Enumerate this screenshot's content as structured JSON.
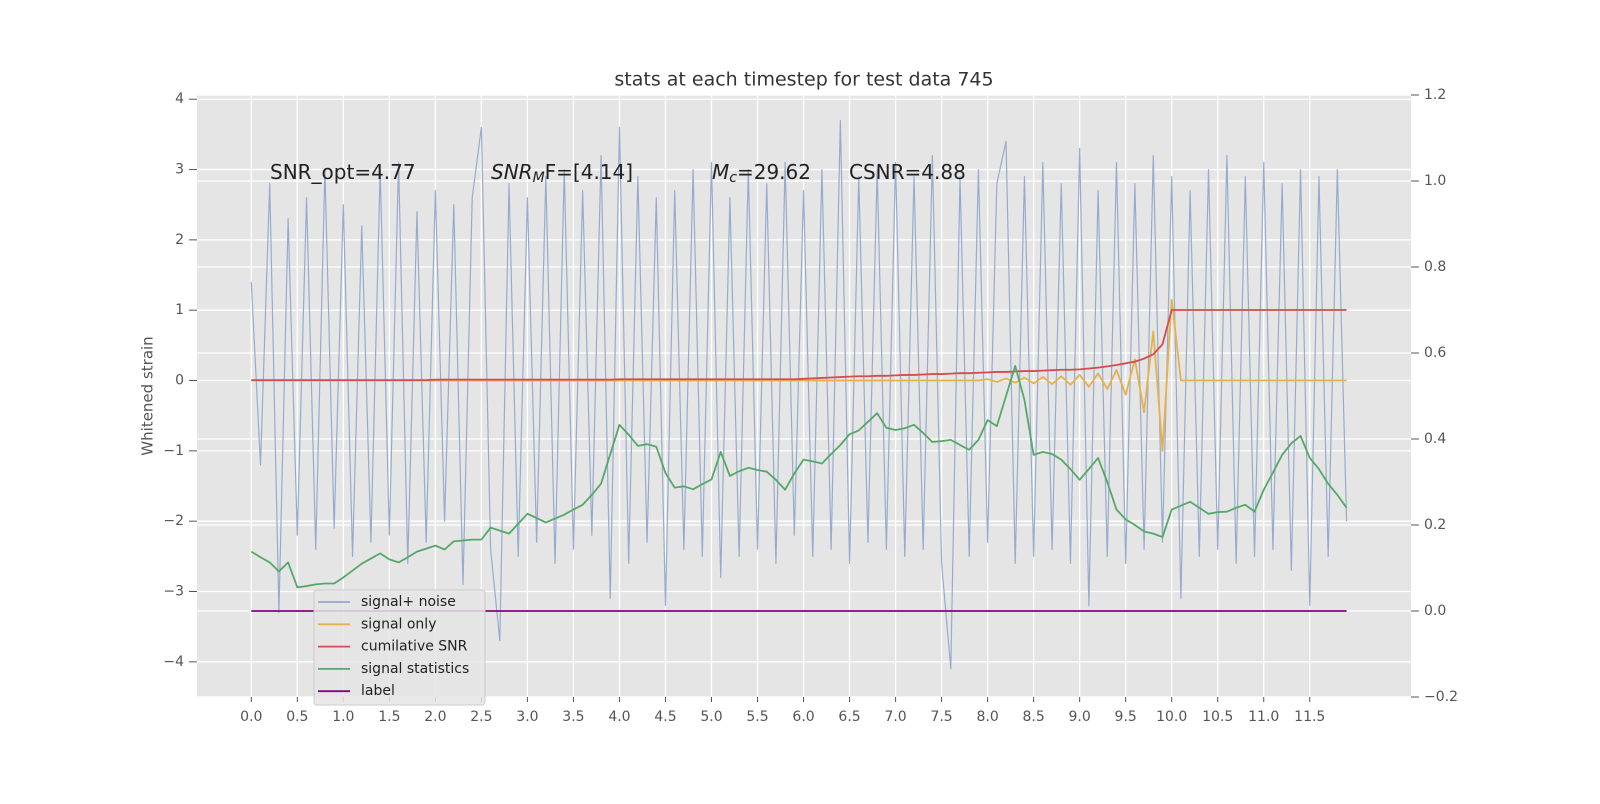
{
  "chart_data": {
    "type": "line",
    "title": "stats at each timestep for test data 745",
    "y_label": "Whitened strain",
    "annotations": [
      {
        "main": "SNR_opt=4.77"
      },
      {
        "main": "SNR",
        "sub": "M",
        "tail": "F=[4.14]"
      },
      {
        "main": "M",
        "sub": "c",
        "tail": "=29.62"
      },
      {
        "main": "CSNR=4.88"
      }
    ],
    "grid": true,
    "legend": "lower left",
    "xlim": [
      -0.59,
      12.6
    ],
    "ylim": [
      -4.5,
      4.06
    ],
    "y2lim": [
      -0.2,
      1.2
    ],
    "xticks": [
      {
        "value": 0,
        "label": "0.0"
      },
      0.5,
      {
        "value": 1,
        "label": "1.0"
      },
      1.5,
      {
        "value": 2,
        "label": "2.0"
      },
      2.5,
      {
        "value": 3,
        "label": "3.0"
      },
      3.5,
      {
        "value": 4,
        "label": "4.0"
      },
      4.5,
      {
        "value": 5,
        "label": "5.0"
      },
      5.5,
      {
        "value": 6,
        "label": "6.0"
      },
      6.5,
      {
        "value": 7,
        "label": "7.0"
      },
      7.5,
      {
        "value": 8,
        "label": "8.0"
      },
      8.5,
      {
        "value": 9,
        "label": "9.0"
      },
      9.5,
      {
        "value": 10,
        "label": "10.0"
      },
      10.5,
      {
        "value": 11,
        "label": "11.0"
      },
      11.5
    ],
    "yticks": [
      {
        "value": -4,
        "label": "−4"
      },
      {
        "value": -3,
        "label": "−3"
      },
      {
        "value": -2,
        "label": "−2"
      },
      {
        "value": -1,
        "label": "−1"
      },
      0,
      1,
      2,
      3,
      4
    ],
    "y2ticks": [
      {
        "value": -0.2,
        "label": "−0.2"
      },
      {
        "value": 0,
        "label": "0.0"
      },
      0.2,
      0.4,
      0.6,
      0.8,
      {
        "value": 1,
        "label": "1.0"
      },
      1.2
    ],
    "x": [
      0,
      0.1,
      0.2,
      0.3,
      0.4,
      0.5,
      0.6,
      0.7,
      0.8,
      0.9,
      1,
      1.1,
      1.2,
      1.3,
      1.4,
      1.5,
      1.6,
      1.7,
      1.8,
      1.9,
      2,
      2.1,
      2.2,
      2.3,
      2.4,
      2.5,
      2.6,
      2.7,
      2.8,
      2.9,
      3,
      3.1,
      3.2,
      3.3,
      3.4,
      3.5,
      3.6,
      3.7,
      3.8,
      3.9,
      4,
      4.1,
      4.2,
      4.3,
      4.4,
      4.5,
      4.6,
      4.7,
      4.8,
      4.9,
      5,
      5.1,
      5.2,
      5.3,
      5.4,
      5.5,
      5.6,
      5.7,
      5.8,
      5.9,
      6,
      6.1,
      6.2,
      6.3,
      6.4,
      6.5,
      6.6,
      6.7,
      6.8,
      6.9,
      7,
      7.1,
      7.2,
      7.3,
      7.4,
      7.5,
      7.6,
      7.7,
      7.8,
      7.9,
      8,
      8.1,
      8.2,
      8.3,
      8.4,
      8.5,
      8.6,
      8.7,
      8.8,
      8.9,
      9,
      9.1,
      9.2,
      9.3,
      9.4,
      9.5,
      9.6,
      9.7,
      9.8,
      9.9,
      10,
      10.1,
      10.2,
      10.3,
      10.4,
      10.5,
      10.6,
      10.7,
      10.8,
      10.9,
      11,
      11.1,
      11.2,
      11.3,
      11.4,
      11.5,
      11.6,
      11.7,
      11.8,
      11.9
    ],
    "series": [
      {
        "name": "signal+ noise",
        "color": "#92a8cd",
        "values": [
          1.4,
          -1.2,
          2.8,
          -3.3,
          2.3,
          -2.2,
          2.6,
          -2.4,
          3.0,
          -2.1,
          2.5,
          -2.5,
          2.2,
          -2.3,
          3.0,
          -2.2,
          3.1,
          -2.6,
          2.4,
          -2.3,
          2.7,
          -2.0,
          2.5,
          -2.9,
          2.6,
          3.6,
          -2.4,
          -3.7,
          2.8,
          -2.5,
          2.6,
          -2.3,
          2.9,
          -2.6,
          3.0,
          -2.4,
          2.7,
          -2.2,
          3.2,
          -3.1,
          3.6,
          -2.6,
          2.9,
          -2.3,
          2.6,
          -3.2,
          2.7,
          -2.4,
          3.0,
          -2.5,
          3.1,
          -2.8,
          2.6,
          -2.5,
          3.0,
          -2.4,
          2.8,
          -2.6,
          3.1,
          -2.2,
          2.7,
          -2.5,
          3.0,
          -2.4,
          3.7,
          -2.6,
          2.9,
          -2.3,
          3.0,
          -2.4,
          3.1,
          -2.5,
          2.9,
          -2.4,
          3.2,
          -2.6,
          -4.1,
          2.9,
          -2.5,
          3.0,
          -2.3,
          2.8,
          3.4,
          -2.6,
          2.9,
          -2.5,
          3.1,
          -2.4,
          2.8,
          -2.6,
          3.3,
          -3.2,
          2.7,
          -2.5,
          3.1,
          -2.6,
          2.8,
          -2.4,
          3.2,
          -2.3,
          2.9,
          -3.1,
          2.7,
          -2.5,
          3.0,
          -2.4,
          3.2,
          -2.6,
          2.9,
          -2.5,
          3.1,
          -2.4,
          2.8,
          -2.7,
          3.0,
          -3.2,
          2.9,
          -2.5,
          3.0,
          -2.0
        ]
      },
      {
        "name": "signal only",
        "color": "#e8b04b",
        "values": [
          0,
          0,
          0,
          0,
          0,
          0,
          0,
          0,
          0,
          0,
          0,
          0,
          0,
          0,
          0,
          0,
          0,
          0,
          0,
          0,
          0,
          0,
          0,
          0,
          0,
          0,
          0,
          0,
          0,
          0,
          0,
          0,
          0,
          0,
          0,
          0,
          0,
          0,
          0,
          0,
          0,
          0,
          0,
          0,
          0,
          0,
          0,
          0,
          0,
          0,
          0,
          0,
          0,
          0,
          0,
          0,
          0,
          0,
          0,
          0,
          0,
          0,
          0,
          0,
          0,
          0,
          0,
          0,
          0,
          0,
          0,
          0,
          0,
          0,
          0,
          0,
          0,
          0,
          0,
          0,
          0.02,
          -0.02,
          0.03,
          -0.03,
          0.04,
          -0.04,
          0.05,
          -0.05,
          0.06,
          -0.06,
          0.08,
          -0.09,
          0.1,
          -0.12,
          0.15,
          -0.2,
          0.3,
          -0.45,
          0.7,
          -1.0,
          1.15,
          0,
          0,
          0,
          0,
          0,
          0,
          0,
          0,
          0,
          0,
          0,
          0,
          0,
          0,
          0,
          0,
          0,
          0,
          0
        ]
      },
      {
        "name": "cumilative SNR",
        "color": "#d64b4b",
        "axis": "y2",
        "values": [
          0.537,
          0.537,
          0.537,
          0.537,
          0.537,
          0.537,
          0.537,
          0.537,
          0.537,
          0.537,
          0.537,
          0.537,
          0.537,
          0.537,
          0.537,
          0.537,
          0.537,
          0.537,
          0.537,
          0.537,
          0.538,
          0.538,
          0.538,
          0.538,
          0.538,
          0.538,
          0.538,
          0.538,
          0.538,
          0.538,
          0.538,
          0.538,
          0.538,
          0.538,
          0.538,
          0.538,
          0.538,
          0.538,
          0.538,
          0.538,
          0.539,
          0.539,
          0.539,
          0.539,
          0.539,
          0.539,
          0.539,
          0.539,
          0.539,
          0.539,
          0.539,
          0.539,
          0.539,
          0.539,
          0.539,
          0.539,
          0.539,
          0.539,
          0.539,
          0.539,
          0.54,
          0.541,
          0.542,
          0.543,
          0.544,
          0.545,
          0.546,
          0.546,
          0.547,
          0.547,
          0.548,
          0.549,
          0.549,
          0.55,
          0.551,
          0.551,
          0.552,
          0.553,
          0.553,
          0.554,
          0.555,
          0.556,
          0.556,
          0.557,
          0.558,
          0.558,
          0.559,
          0.56,
          0.561,
          0.561,
          0.562,
          0.564,
          0.566,
          0.569,
          0.572,
          0.576,
          0.58,
          0.587,
          0.597,
          0.62,
          0.7,
          0.7,
          0.7,
          0.7,
          0.7,
          0.7,
          0.7,
          0.7,
          0.7,
          0.7,
          0.7,
          0.7,
          0.7,
          0.7,
          0.7,
          0.7,
          0.7,
          0.7,
          0.7,
          0.7
        ]
      },
      {
        "name": "signal statistics",
        "color": "#55a868",
        "axis": "y2",
        "values": [
          0.138,
          0.125,
          0.113,
          0.092,
          0.113,
          0.055,
          0.058,
          0.062,
          0.064,
          0.064,
          0.078,
          0.094,
          0.11,
          0.122,
          0.134,
          0.12,
          0.113,
          0.125,
          0.138,
          0.145,
          0.152,
          0.143,
          0.162,
          0.164,
          0.166,
          0.166,
          0.194,
          0.187,
          0.18,
          0.203,
          0.226,
          0.216,
          0.206,
          0.215,
          0.224,
          0.236,
          0.247,
          0.27,
          0.296,
          0.365,
          0.433,
          0.41,
          0.384,
          0.388,
          0.382,
          0.321,
          0.287,
          0.29,
          0.283,
          0.295,
          0.306,
          0.37,
          0.314,
          0.325,
          0.333,
          0.328,
          0.324,
          0.305,
          0.282,
          0.32,
          0.352,
          0.348,
          0.343,
          0.365,
          0.386,
          0.411,
          0.42,
          0.44,
          0.46,
          0.426,
          0.421,
          0.425,
          0.433,
          0.414,
          0.393,
          0.395,
          0.398,
          0.386,
          0.375,
          0.398,
          0.444,
          0.43,
          0.5,
          0.57,
          0.491,
          0.363,
          0.37,
          0.365,
          0.352,
          0.33,
          0.305,
          0.33,
          0.356,
          0.3,
          0.236,
          0.213,
          0.2,
          0.185,
          0.18,
          0.172,
          0.236,
          0.245,
          0.254,
          0.24,
          0.226,
          0.23,
          0.231,
          0.24,
          0.247,
          0.231,
          0.282,
          0.322,
          0.363,
          0.39,
          0.407,
          0.356,
          0.33,
          0.296,
          0.27,
          0.24
        ]
      },
      {
        "name": "label",
        "color": "#7b0a7b",
        "axis": "y2",
        "values": [
          0,
          0,
          0,
          0,
          0,
          0,
          0,
          0,
          0,
          0,
          0,
          0,
          0,
          0,
          0,
          0,
          0,
          0,
          0,
          0,
          0,
          0,
          0,
          0,
          0,
          0,
          0,
          0,
          0,
          0,
          0,
          0,
          0,
          0,
          0,
          0,
          0,
          0,
          0,
          0,
          0,
          0,
          0,
          0,
          0,
          0,
          0,
          0,
          0,
          0,
          0,
          0,
          0,
          0,
          0,
          0,
          0,
          0,
          0,
          0,
          0,
          0,
          0,
          0,
          0,
          0,
          0,
          0,
          0,
          0,
          0,
          0,
          0,
          0,
          0,
          0,
          0,
          0,
          0,
          0,
          0,
          0,
          0,
          0,
          0,
          0,
          0,
          0,
          0,
          0,
          0,
          0,
          0,
          0,
          0,
          0,
          0,
          0,
          0,
          0,
          0,
          0,
          0,
          0,
          0,
          0,
          0,
          0,
          0,
          0,
          0,
          0,
          0,
          0,
          0,
          0,
          0,
          0,
          0,
          0
        ]
      }
    ]
  }
}
